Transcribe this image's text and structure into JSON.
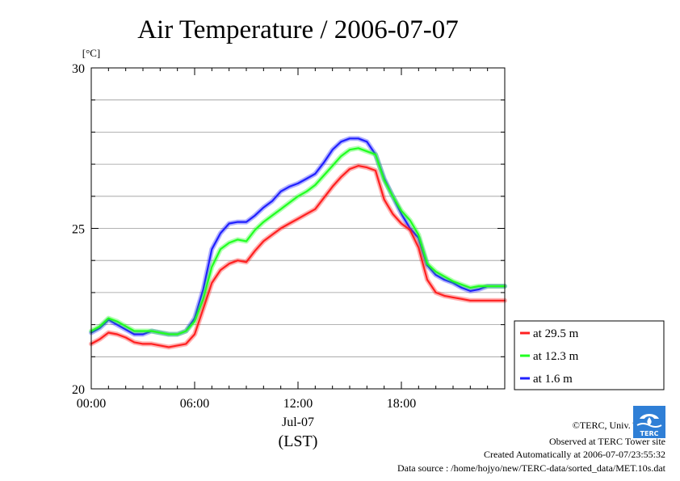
{
  "chart_data": {
    "type": "line",
    "title": "Air Temperature / 2006-07-07",
    "unit": "[°C]",
    "ylim": [
      20,
      30
    ],
    "y_ticks": [
      20,
      25,
      30
    ],
    "y_tick_labels": [
      "20",
      "25",
      "30"
    ],
    "xlim": [
      0,
      24
    ],
    "x_ticks": [
      0,
      6,
      12,
      18
    ],
    "x_tick_labels": [
      "00:00",
      "06:00",
      "12:00",
      "18:00"
    ],
    "x_date": "Jul-07",
    "x_label": "(LST)",
    "grid": true,
    "legend_position": "right",
    "x": [
      0,
      0.5,
      1,
      1.5,
      2,
      2.5,
      3,
      3.5,
      4,
      4.5,
      5,
      5.5,
      6,
      6.5,
      7,
      7.5,
      8,
      8.5,
      9,
      9.5,
      10,
      10.5,
      11,
      11.5,
      12,
      12.5,
      13,
      13.5,
      14,
      14.5,
      15,
      15.5,
      16,
      16.5,
      17,
      17.5,
      18,
      18.5,
      19,
      19.5,
      20,
      20.5,
      21,
      21.5,
      22,
      22.5,
      23,
      23.5,
      24
    ],
    "series": [
      {
        "name": "at 29.5 m",
        "color": "#ff2020",
        "values": [
          21.4,
          21.55,
          21.75,
          21.7,
          21.6,
          21.45,
          21.4,
          21.4,
          21.35,
          21.3,
          21.35,
          21.4,
          21.7,
          22.5,
          23.3,
          23.7,
          23.9,
          24.0,
          23.95,
          24.3,
          24.6,
          24.8,
          25.0,
          25.15,
          25.3,
          25.45,
          25.6,
          25.95,
          26.3,
          26.6,
          26.85,
          26.95,
          26.9,
          26.8,
          25.9,
          25.45,
          25.15,
          24.95,
          24.4,
          23.4,
          23.0,
          22.9,
          22.85,
          22.8,
          22.75,
          22.75,
          22.75,
          22.75,
          22.75
        ]
      },
      {
        "name": "at 12.3 m",
        "color": "#20ff20",
        "values": [
          21.8,
          21.95,
          22.2,
          22.1,
          21.95,
          21.8,
          21.8,
          21.8,
          21.75,
          21.7,
          21.7,
          21.8,
          22.1,
          22.8,
          23.8,
          24.35,
          24.55,
          24.65,
          24.6,
          24.95,
          25.2,
          25.4,
          25.6,
          25.8,
          26.0,
          26.15,
          26.35,
          26.65,
          26.95,
          27.25,
          27.45,
          27.5,
          27.4,
          27.3,
          26.5,
          26.0,
          25.55,
          25.25,
          24.8,
          23.9,
          23.65,
          23.5,
          23.35,
          23.25,
          23.15,
          23.2,
          23.2,
          23.2,
          23.2
        ]
      },
      {
        "name": "at 1.6 m",
        "color": "#2020ff",
        "values": [
          21.75,
          21.9,
          22.15,
          22.0,
          21.85,
          21.7,
          21.7,
          21.8,
          21.75,
          21.7,
          21.7,
          21.8,
          22.2,
          23.1,
          24.35,
          24.85,
          25.15,
          25.2,
          25.2,
          25.4,
          25.65,
          25.85,
          26.15,
          26.3,
          26.4,
          26.55,
          26.7,
          27.05,
          27.45,
          27.7,
          27.8,
          27.8,
          27.7,
          27.3,
          26.55,
          26.0,
          25.45,
          25.0,
          24.7,
          23.85,
          23.55,
          23.4,
          23.3,
          23.15,
          23.05,
          23.1,
          23.2,
          23.2,
          23.2
        ]
      }
    ]
  },
  "footer": {
    "copyright": "©TERC, Univ. Tsukuba",
    "site": "Observed at TERC Tower site",
    "created": "Created Automatically at 2006-07-07/23:55:32",
    "source": "Data source : /home/hojyo/new/TERC-data/sorted_data/MET.10s.dat"
  },
  "logo": {
    "text": "TERC",
    "color": "#2f7fd6"
  }
}
